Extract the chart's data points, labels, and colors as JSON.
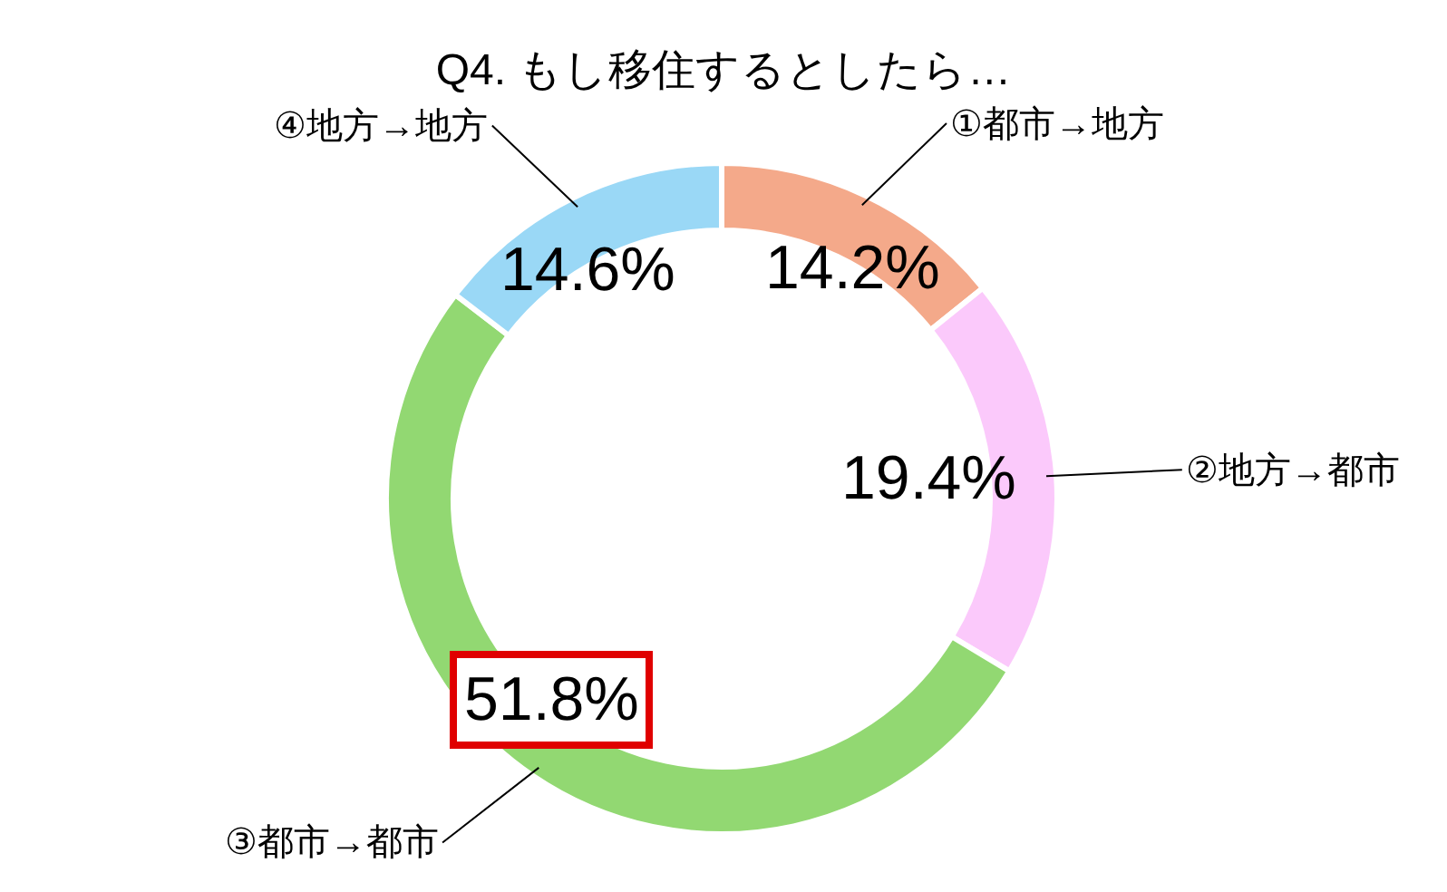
{
  "chart_data": {
    "type": "donut",
    "title": "Q4. もし移住するとしたら…",
    "categories": [
      "①都市→地方",
      "②地方→都市",
      "③都市→都市",
      "④地方→地方"
    ],
    "values": [
      14.2,
      19.4,
      51.8,
      14.6
    ],
    "value_labels": [
      "14.2%",
      "19.4%",
      "51.8%",
      "14.6%"
    ],
    "colors": [
      "#f4a98a",
      "#fbc9fb",
      "#92d872",
      "#9ad8f6"
    ],
    "legend": false
  }
}
